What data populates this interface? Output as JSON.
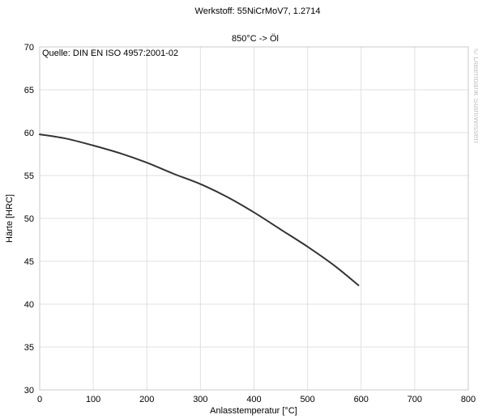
{
  "chart_data": {
    "type": "line",
    "title": "Werkstoff: 55NiCrMoV7, 1.2714",
    "subtitle": "850°C -> Öl",
    "annotation": "Quelle: DIN EN ISO 4957:2001-02",
    "watermark": "© Datenbank StahlWissen",
    "xlabel": "Anlasstemperatur [°C]",
    "ylabel": "Härte [HRC]",
    "xlim": [
      0,
      800
    ],
    "ylim": [
      30,
      70
    ],
    "xticks": [
      0,
      100,
      200,
      300,
      400,
      500,
      600,
      700,
      800
    ],
    "yticks": [
      30,
      35,
      40,
      45,
      50,
      55,
      60,
      65,
      70
    ],
    "grid": true,
    "line_color": "#333333",
    "grid_color": "#e0e0e0",
    "series": [
      {
        "x": [
          0,
          50,
          100,
          150,
          200,
          250,
          300,
          350,
          400,
          450,
          500,
          550,
          595
        ],
        "y": [
          59.8,
          59.3,
          58.5,
          57.6,
          56.5,
          55.2,
          54.0,
          52.5,
          50.7,
          48.7,
          46.7,
          44.5,
          42.2
        ]
      }
    ]
  }
}
